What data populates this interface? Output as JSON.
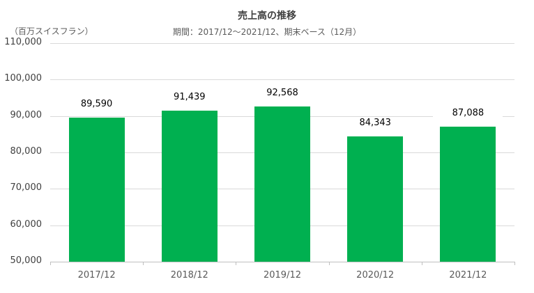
{
  "chart_data": {
    "type": "bar",
    "title": "売上高の推移",
    "subtitle": "期間：2017/12～2021/12、期末ベース（12月）",
    "ylabel": "（百万スイスフラン）",
    "xlabel": "",
    "categories": [
      "2017/12",
      "2018/12",
      "2019/12",
      "2020/12",
      "2021/12"
    ],
    "values": [
      89590,
      91439,
      92568,
      84343,
      87088
    ],
    "value_labels": [
      "89,590",
      "91,439",
      "92,568",
      "84,343",
      "87,088"
    ],
    "ylim": [
      50000,
      110000
    ],
    "yticks": [
      "110,000",
      "100,000",
      "90,000",
      "80,000",
      "70,000",
      "60,000",
      "50,000"
    ],
    "grid": true,
    "legend": "none",
    "bar_color": "#00b050"
  }
}
